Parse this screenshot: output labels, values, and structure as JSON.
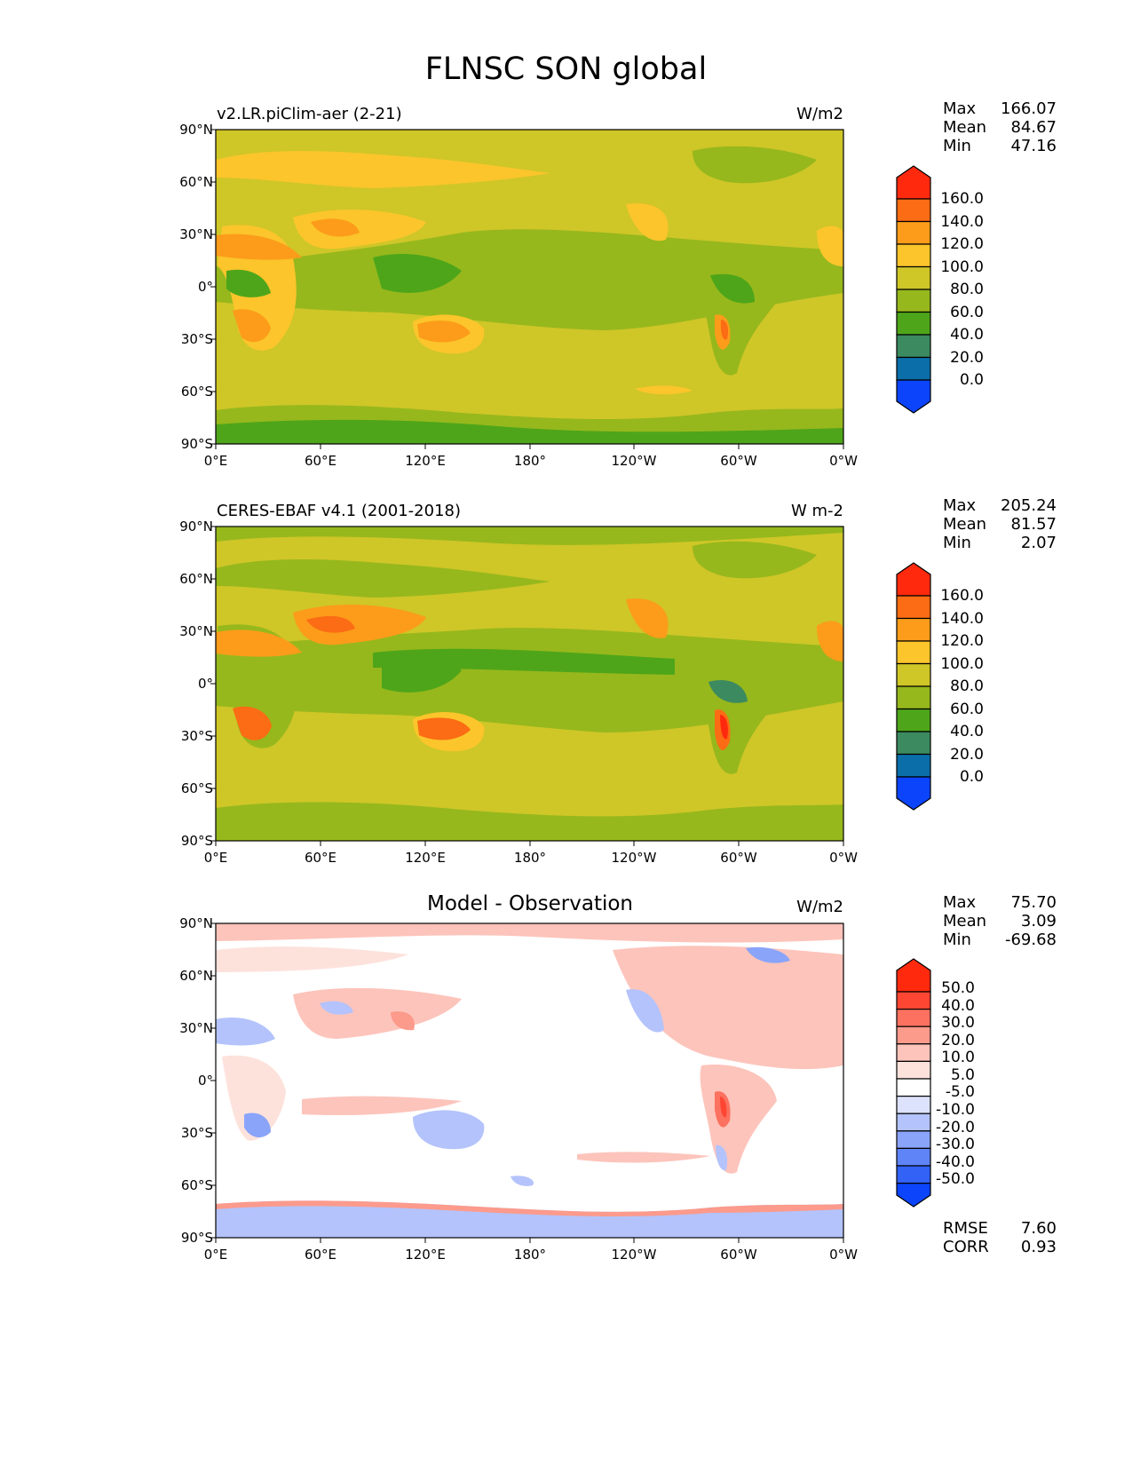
{
  "figure": {
    "title": "FLNSC SON global"
  },
  "panels": [
    {
      "label": "v2.LR.piClim-aer (2-21)",
      "units": "W/m2",
      "title": "",
      "stats": {
        "max_label": "Max",
        "max": "166.07",
        "mean_label": "Mean",
        "mean": "84.67",
        "min_label": "Min",
        "min": "47.16"
      },
      "colorbar": {
        "labels": [
          "160.0",
          "140.0",
          "120.0",
          "100.0",
          "80.0",
          "60.0",
          "40.0",
          "20.0",
          "0.0"
        ],
        "colors": [
          "#ff2a0e",
          "#fb6c14",
          "#fc9c1a",
          "#fbc52b",
          "#cfc628",
          "#96b81c",
          "#4ea51a",
          "#3c8a60",
          "#0b6ea8",
          "#0c44fc"
        ]
      }
    },
    {
      "label": "CERES-EBAF v4.1 (2001-2018)",
      "units": "W m-2",
      "title": "",
      "stats": {
        "max_label": "Max",
        "max": "205.24",
        "mean_label": "Mean",
        "mean": "81.57",
        "min_label": "Min",
        "min": "2.07"
      },
      "colorbar": {
        "labels": [
          "160.0",
          "140.0",
          "120.0",
          "100.0",
          "80.0",
          "60.0",
          "40.0",
          "20.0",
          "0.0"
        ],
        "colors": [
          "#ff2a0e",
          "#fb6c14",
          "#fc9c1a",
          "#fbc52b",
          "#cfc628",
          "#96b81c",
          "#4ea51a",
          "#3c8a60",
          "#0b6ea8",
          "#0c44fc"
        ]
      }
    },
    {
      "label": "",
      "units": "W/m2",
      "title": "Model - Observation",
      "stats": {
        "max_label": "Max",
        "max": "75.70",
        "mean_label": "Mean",
        "mean": "3.09",
        "min_label": "Min",
        "min": "-69.68"
      },
      "extra_stats": {
        "rmse_label": "RMSE",
        "rmse": "7.60",
        "corr_label": "CORR",
        "corr": "0.93"
      },
      "colorbar": {
        "labels": [
          "50.0",
          "40.0",
          "30.0",
          "20.0",
          "10.0",
          "5.0",
          "-5.0",
          "-10.0",
          "-20.0",
          "-30.0",
          "-40.0",
          "-50.0"
        ],
        "colors": [
          "#ff2a0e",
          "#fe4633",
          "#fd7160",
          "#fc9a8c",
          "#fdc4bb",
          "#fde2dc",
          "#ffffff",
          "#dde3fc",
          "#b4c3fb",
          "#8aa4f9",
          "#5f84f7",
          "#3262f6",
          "#0c44fc"
        ]
      }
    }
  ],
  "axes": {
    "lat_ticks": [
      "90°N",
      "60°N",
      "30°N",
      "0°",
      "30°S",
      "60°S",
      "90°S"
    ],
    "lon_ticks": [
      "0°E",
      "60°E",
      "120°E",
      "180°",
      "120°W",
      "60°W",
      "0°W"
    ]
  },
  "palette": {
    "abs_ocean": "#cfc628",
    "abs_land_mid": "#96b81c",
    "abs_land_low": "#4ea51a",
    "abs_desert": "#fbc52b",
    "abs_hot": "#fc9c1a",
    "abs_hotter": "#fb6c14",
    "diff_pos": "#fdc4bb",
    "diff_pos2": "#fc9a8c",
    "diff_neg": "#b4c3fb",
    "diff_neg2": "#8aa4f9"
  }
}
